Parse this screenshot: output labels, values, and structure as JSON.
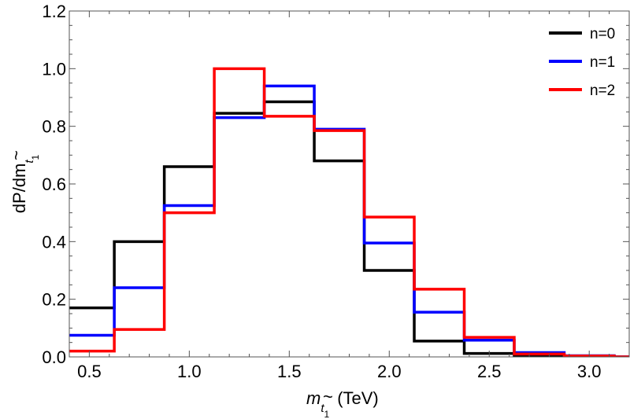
{
  "chart_data": {
    "type": "step-histogram",
    "title": "",
    "xlabel": {
      "main": "m",
      "sub_tilde": "~",
      "sub_t": "t",
      "sub_index": "1",
      "unit": "(TeV)"
    },
    "ylabel": {
      "main": "dP/dm",
      "sub_tilde": "~",
      "sub_t": "t",
      "sub_index": "1"
    },
    "xlim": [
      0.4,
      3.2
    ],
    "ylim": [
      0,
      1.2
    ],
    "xticks": [
      0.5,
      1.0,
      1.5,
      2.0,
      2.5,
      3.0
    ],
    "xtick_labels": [
      "0.5",
      "1.0",
      "1.5",
      "2.0",
      "2.5",
      "3.0"
    ],
    "yticks": [
      0,
      0.2,
      0.4,
      0.6,
      0.8,
      1.0,
      1.2
    ],
    "ytick_labels": [
      "0.0",
      "0.2",
      "0.4",
      "0.6",
      "0.8",
      "1.0",
      "1.2"
    ],
    "bin_edges": [
      0.375,
      0.625,
      0.875,
      1.125,
      1.375,
      1.625,
      1.875,
      2.125,
      2.375,
      2.625,
      2.875,
      3.125,
      3.375
    ],
    "series": [
      {
        "name": "n=0",
        "color": "#000000",
        "values": [
          0.17,
          0.4,
          0.66,
          0.845,
          0.885,
          0.68,
          0.3,
          0.055,
          0.012,
          0.004,
          0.002,
          0.0
        ]
      },
      {
        "name": "n=1",
        "color": "#0000ff",
        "values": [
          0.075,
          0.24,
          0.525,
          0.83,
          0.94,
          0.79,
          0.395,
          0.155,
          0.058,
          0.015,
          0.004,
          0.0
        ]
      },
      {
        "name": "n=2",
        "color": "#ff0000",
        "values": [
          0.02,
          0.095,
          0.5,
          1.0,
          0.835,
          0.785,
          0.485,
          0.235,
          0.068,
          0.01,
          0.003,
          0.0
        ]
      }
    ],
    "legend_position": "top-right",
    "grid": false
  }
}
